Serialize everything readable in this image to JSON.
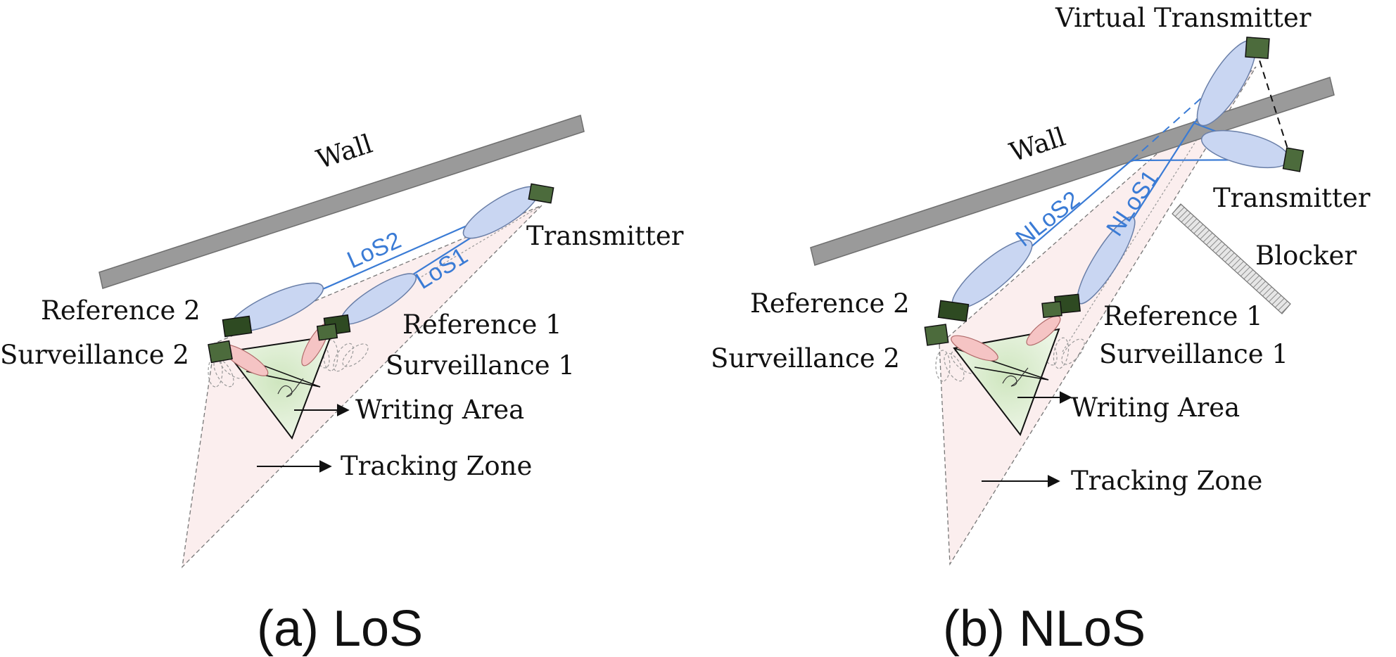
{
  "panel_a": {
    "caption": "(a) LoS",
    "wall": "Wall",
    "transmitter": "Transmitter",
    "reference_1": "Reference 1",
    "reference_2": "Reference 2",
    "surveillance_1": "Surveillance 1",
    "surveillance_2": "Surveillance 2",
    "writing_area": "Writing Area",
    "tracking_zone": "Tracking Zone",
    "path_1": "LoS1",
    "path_2": "LoS2"
  },
  "panel_b": {
    "caption": "(b) NLoS",
    "wall": "Wall",
    "virtual_transmitter": "Virtual Transmitter",
    "transmitter": "Transmitter",
    "blocker": "Blocker",
    "reference_1": "Reference 1",
    "reference_2": "Reference 2",
    "surveillance_1": "Surveillance 1",
    "surveillance_2": "Surveillance 2",
    "writing_area": "Writing Area",
    "tracking_zone": "Tracking Zone",
    "path_1": "NLoS1",
    "path_2": "NLoS2"
  },
  "colors": {
    "wall": "#9a9a9a",
    "antenna": "#4c6b3c",
    "antenna_dark": "#2e4a22",
    "beam_fill": "#c9d6f2",
    "beam_stroke": "#6a7fa8",
    "path_line": "#3a7bd5",
    "surveillance_beam": "#f5c4c4",
    "writing_area_fill": "#e2f0d8",
    "tracking_zone_fill": "#fbeeee"
  }
}
